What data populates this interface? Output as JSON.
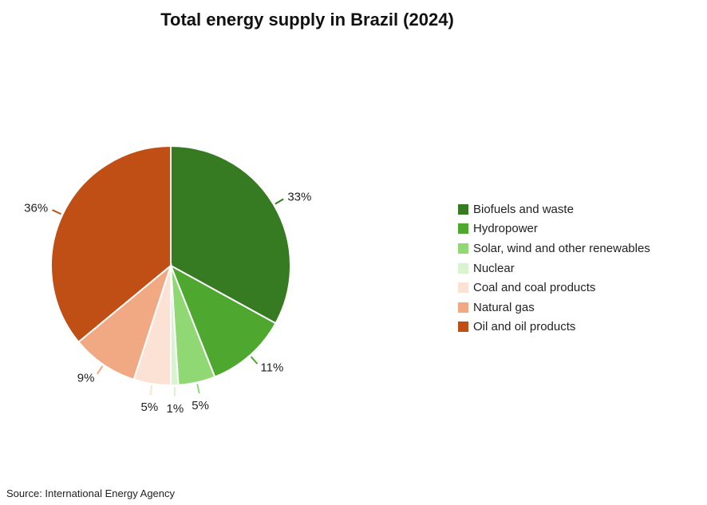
{
  "chart_data": {
    "type": "pie",
    "title": "Total energy supply in Brazil (2024)",
    "categories": [
      "Biofuels and waste",
      "Hydropower",
      "Solar, wind and other renewables",
      "Nuclear",
      "Coal and coal products",
      "Natural gas",
      "Oil and oil products"
    ],
    "values": [
      33,
      11,
      5,
      1,
      5,
      9,
      36
    ],
    "labels": [
      "33%",
      "11%",
      "5%",
      "1%",
      "5%",
      "9%",
      "36%"
    ],
    "colors": [
      "#367a21",
      "#4ea72e",
      "#8fd873",
      "#d9f2d0",
      "#fbe2d5",
      "#f1a983",
      "#c04f15"
    ],
    "unit": "%",
    "legend_position": "right"
  },
  "source": "Source: International Energy Agency"
}
